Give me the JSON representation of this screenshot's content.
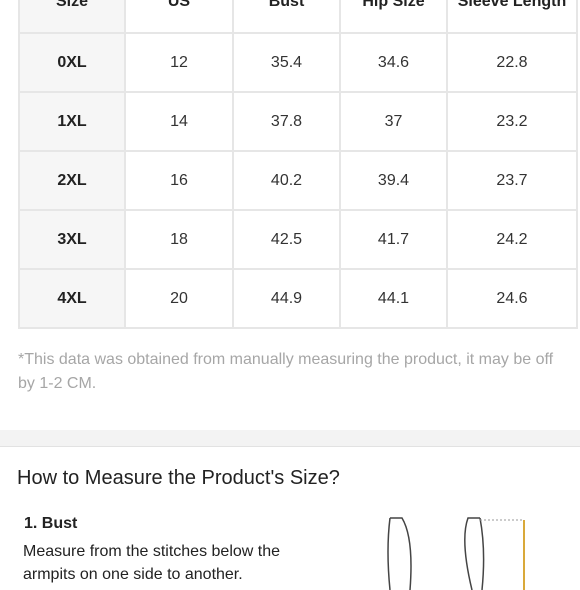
{
  "size_table": {
    "headers": [
      "Size",
      "US",
      "Bust",
      "Hip Size",
      "Sleeve Length"
    ],
    "rows": [
      [
        "0XL",
        "12",
        "35.4",
        "34.6",
        "22.8"
      ],
      [
        "1XL",
        "14",
        "37.8",
        "37",
        "23.2"
      ],
      [
        "2XL",
        "16",
        "40.2",
        "39.4",
        "23.7"
      ],
      [
        "3XL",
        "18",
        "42.5",
        "41.7",
        "24.2"
      ],
      [
        "4XL",
        "20",
        "44.9",
        "44.1",
        "24.6"
      ]
    ]
  },
  "note": "*This data was obtained from manually measuring the product, it may be off by 1-2 CM.",
  "measure_section": {
    "title": "How to Measure the Product's Size?",
    "items": [
      {
        "heading": "1. Bust",
        "text": "Measure from the stitches below the armpits on one side to another."
      }
    ]
  },
  "colors": {
    "accent_measure_line": "#d9a93a",
    "note_text": "#a6a6a6",
    "table_border": "#e6e6e6"
  }
}
